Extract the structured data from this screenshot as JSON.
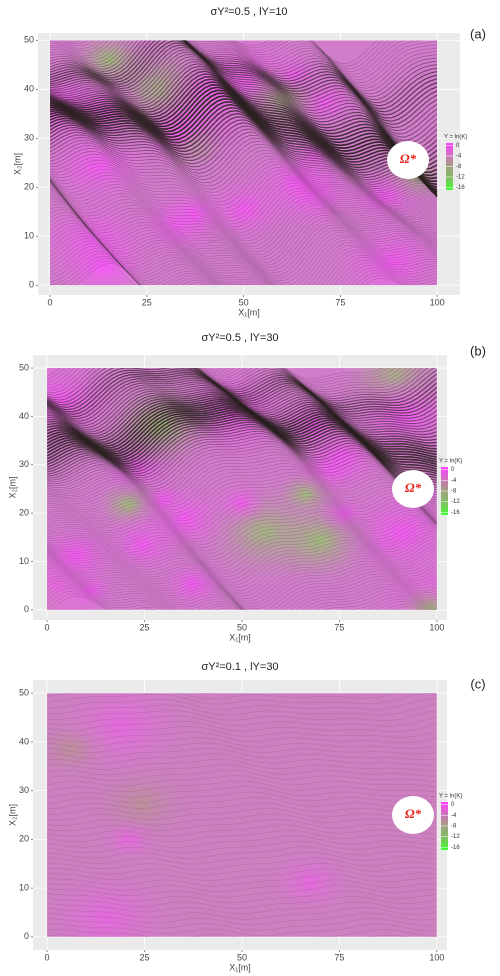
{
  "chart_data": [
    {
      "type": "streamlines",
      "title": "σY²=0.5 , lY=10",
      "panel_label": "(a)",
      "annotation": "Ω*",
      "x_label": "X₁[m]",
      "y_label": "X₂[m]",
      "xlim": [
        -3.1,
        105.9
      ],
      "ylim": [
        -2,
        51.5
      ],
      "xticks": [
        0,
        25,
        50,
        75,
        100
      ],
      "yticks": [
        0,
        10,
        20,
        30,
        40,
        50
      ],
      "legend_title": "Y = ln(K)",
      "colorbar_ticks": [
        0,
        -4,
        -8,
        -12,
        -16
      ],
      "colorbar_lim": [
        1,
        -17
      ],
      "colorscale": [
        "#ff40ff",
        "#d070c0",
        "#a0a080",
        "#80c060",
        "#40ff30"
      ],
      "grid": true
    },
    {
      "type": "streamlines",
      "title": "σY²=0.5 , lY=30",
      "panel_label": "(b)",
      "annotation": "Ω*",
      "x_label": "X₁[m]",
      "y_label": "X₂[m]",
      "xlim": [
        -3.6,
        102.6
      ],
      "ylim": [
        -2.1,
        52.7
      ],
      "xticks": [
        0,
        25,
        50,
        75,
        100
      ],
      "yticks": [
        0,
        10,
        20,
        30,
        40,
        50
      ],
      "legend_title": "Y = ln(K)",
      "colorbar_ticks": [
        0,
        -4,
        -8,
        -12,
        -16
      ],
      "colorbar_lim": [
        1,
        -17
      ],
      "colorscale": [
        "#ff40ff",
        "#d070c0",
        "#a0a080",
        "#80c060",
        "#40ff30"
      ],
      "grid": true
    },
    {
      "type": "streamlines",
      "title": "σY²=0.1 , lY=30",
      "panel_label": "(c)",
      "annotation": "Ω*",
      "x_label": "X₁[m]",
      "y_label": "X₂[m]",
      "xlim": [
        -3.6,
        102.6
      ],
      "ylim": [
        -2.7,
        52.7
      ],
      "xticks": [
        0,
        25,
        50,
        75,
        100
      ],
      "yticks": [
        0,
        10,
        20,
        30,
        40,
        50
      ],
      "legend_title": "Y = ln(K)",
      "colorbar_ticks": [
        0,
        -4,
        -8,
        -12,
        -16
      ],
      "colorbar_lim": [
        1,
        -17
      ],
      "colorscale": [
        "#ff40ff",
        "#d070c0",
        "#a0a080",
        "#80c060",
        "#40ff30"
      ],
      "grid": true
    }
  ]
}
